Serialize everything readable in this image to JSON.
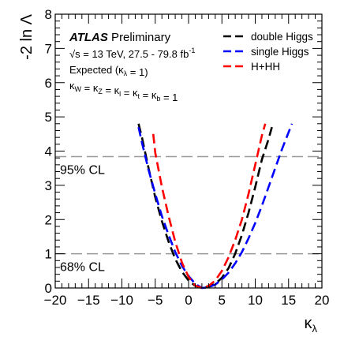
{
  "chart_data": {
    "type": "line",
    "xlabel": "κ",
    "xlabel_sub": "λ",
    "ylabel": "-2 ln Λ",
    "xlim": [
      -20,
      20
    ],
    "ylim": [
      0,
      8
    ],
    "x_ticks": [
      -20,
      -15,
      -10,
      -5,
      0,
      5,
      10,
      15,
      20
    ],
    "x_tick_labels": [
      "−20",
      "−15",
      "−10",
      "−5",
      "0",
      "5",
      "10",
      "15",
      "20"
    ],
    "y_ticks": [
      0,
      1,
      2,
      3,
      4,
      5,
      6,
      7,
      8
    ],
    "y_tick_labels": [
      "0",
      "1",
      "2",
      "3",
      "4",
      "5",
      "6",
      "7",
      "8"
    ],
    "reference_lines": [
      {
        "y": 3.84,
        "label": "95% CL"
      },
      {
        "y": 1.0,
        "label": "68% CL"
      }
    ],
    "annotations": {
      "atlas": "ATLAS",
      "preliminary": "Preliminary",
      "energy_sqrt": "√s",
      "energy_rest": "= 13 TeV, 27.5 - 79.8 fb",
      "energy_sup": "-1",
      "expected_a": "Expected (κ",
      "expected_sub": "λ",
      "expected_b": " = 1)",
      "couplings": [
        {
          "t": "κ"
        },
        {
          "t": "W",
          "sub": true
        },
        {
          "t": " = κ"
        },
        {
          "t": "Z",
          "sub": true
        },
        {
          "t": " = κ"
        },
        {
          "t": "l",
          "sub": true
        },
        {
          "t": " = κ"
        },
        {
          "t": "t",
          "sub": true
        },
        {
          "t": " = κ"
        },
        {
          "t": "b",
          "sub": true
        },
        {
          "t": " = 1"
        }
      ]
    },
    "legend_position": "top-right",
    "series": [
      {
        "name": "double Higgs",
        "color": "#000000",
        "x": [
          -7.5,
          -7,
          -6,
          -5,
          -4,
          -3,
          -2,
          -1,
          0,
          1,
          2,
          3,
          4,
          5,
          6,
          7,
          8,
          9,
          10,
          11,
          12,
          12.5
        ],
        "y": [
          4.8,
          4.4,
          3.5,
          2.65,
          1.95,
          1.35,
          0.85,
          0.48,
          0.22,
          0.06,
          0.0,
          0.03,
          0.12,
          0.3,
          0.58,
          1.0,
          1.55,
          2.2,
          2.95,
          3.75,
          4.35,
          4.7
        ]
      },
      {
        "name": "single Higgs",
        "color": "#0000ff",
        "x": [
          -7.5,
          -7,
          -6,
          -5,
          -4,
          -3,
          -2,
          -1,
          0,
          1,
          2,
          3,
          4,
          5,
          6,
          7,
          8,
          9,
          10,
          11,
          12,
          13,
          14,
          15,
          15.5
        ],
        "y": [
          4.7,
          4.25,
          3.45,
          2.75,
          2.1,
          1.55,
          1.05,
          0.65,
          0.35,
          0.12,
          0.0,
          0.02,
          0.1,
          0.25,
          0.45,
          0.72,
          1.05,
          1.45,
          1.9,
          2.4,
          2.95,
          3.5,
          4.05,
          4.55,
          4.8
        ]
      },
      {
        "name": "H+HH",
        "color": "#ff0000",
        "x": [
          -5.3,
          -5,
          -4,
          -3,
          -2,
          -1,
          0,
          1,
          2,
          3,
          4,
          5,
          6,
          7,
          8,
          9,
          10,
          11,
          11.5
        ],
        "y": [
          4.5,
          3.95,
          2.95,
          2.1,
          1.35,
          0.75,
          0.32,
          0.07,
          0.0,
          0.06,
          0.22,
          0.5,
          0.9,
          1.4,
          2.0,
          2.75,
          3.6,
          4.45,
          4.8
        ]
      }
    ]
  }
}
